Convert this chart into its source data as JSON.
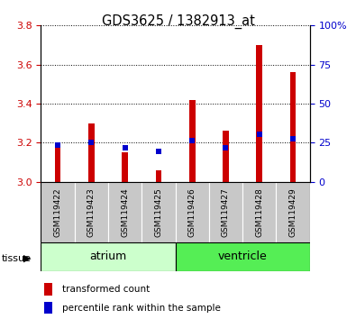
{
  "title": "GDS3625 / 1382913_at",
  "samples": [
    "GSM119422",
    "GSM119423",
    "GSM119424",
    "GSM119425",
    "GSM119426",
    "GSM119427",
    "GSM119428",
    "GSM119429"
  ],
  "red_bars": [
    3.2,
    3.3,
    3.15,
    3.06,
    3.42,
    3.26,
    3.7,
    3.56
  ],
  "blue_markers": [
    3.19,
    3.2,
    3.175,
    3.155,
    3.21,
    3.175,
    3.245,
    3.22
  ],
  "ylim_left": [
    3.0,
    3.8
  ],
  "ylim_right": [
    0,
    100
  ],
  "yticks_left": [
    3.0,
    3.2,
    3.4,
    3.6,
    3.8
  ],
  "yticks_right": [
    0,
    25,
    50,
    75,
    100
  ],
  "bar_color": "#cc0000",
  "marker_color": "#0000cc",
  "ybase": 3.0,
  "left_label_color": "#cc0000",
  "right_label_color": "#0000cc",
  "atrium_color": "#ccffcc",
  "ventricle_color": "#55ee55",
  "bar_width": 0.18,
  "marker_size": 5
}
